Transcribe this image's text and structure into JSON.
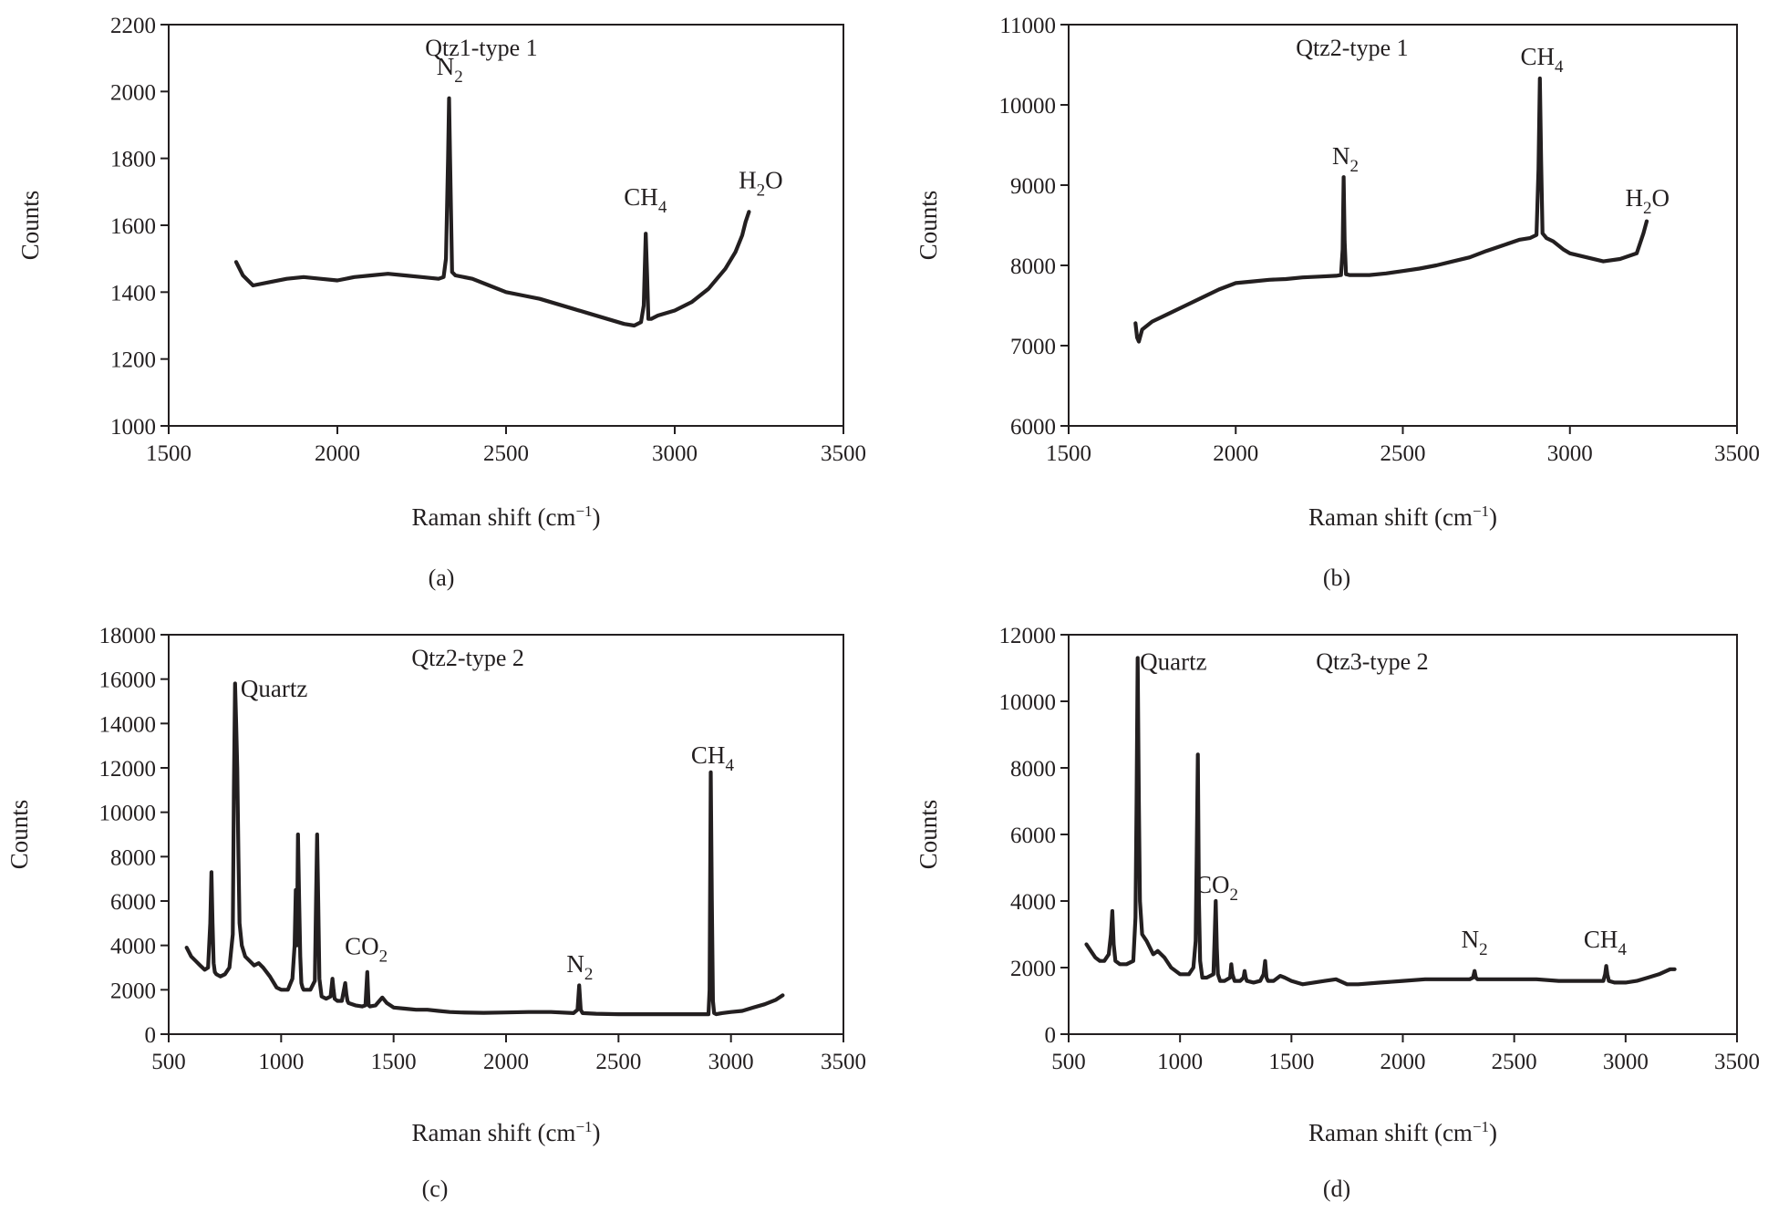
{
  "chart_data": [
    {
      "type": "line",
      "panel_label": "(a)",
      "title": "Qtz1-type 1",
      "xlabel_main": "Raman shift (cm",
      "xlabel_sup": "−1",
      "xlabel_close": ")",
      "ylabel": "Counts",
      "xlim": [
        1500,
        3500
      ],
      "ylim": [
        1000,
        2200
      ],
      "xticks": [
        "1500",
        "2000",
        "2500",
        "3000",
        "3500"
      ],
      "yticks": [
        "1000",
        "1200",
        "1400",
        "1600",
        "1800",
        "2000",
        "2200"
      ],
      "grid": false,
      "series": [
        {
          "x": [
            1700,
            1720,
            1750,
            1800,
            1850,
            1900,
            1950,
            2000,
            2050,
            2100,
            2150,
            2200,
            2250,
            2300,
            2315,
            2322,
            2328,
            2331,
            2334,
            2340,
            2350,
            2400,
            2450,
            2500,
            2550,
            2600,
            2650,
            2700,
            2750,
            2800,
            2850,
            2880,
            2900,
            2908,
            2914,
            2918,
            2922,
            2930,
            2950,
            3000,
            3050,
            3100,
            3150,
            3180,
            3200,
            3210,
            3220
          ],
          "y": [
            1490,
            1450,
            1420,
            1430,
            1440,
            1445,
            1440,
            1435,
            1445,
            1450,
            1455,
            1450,
            1445,
            1440,
            1445,
            1500,
            1800,
            1980,
            1800,
            1460,
            1450,
            1440,
            1420,
            1400,
            1390,
            1380,
            1365,
            1350,
            1335,
            1320,
            1305,
            1300,
            1310,
            1360,
            1575,
            1450,
            1320,
            1320,
            1330,
            1345,
            1370,
            1410,
            1470,
            1520,
            1570,
            1610,
            1640
          ]
        }
      ],
      "annotations": [
        {
          "main": "N",
          "sub": "2",
          "x": 2333,
          "y": 2050
        },
        {
          "main": "CH",
          "sub": "4",
          "x": 2913,
          "y": 1660
        },
        {
          "main": "H",
          "sub": "2",
          "after": "O",
          "x": 3255,
          "y": 1710
        }
      ]
    },
    {
      "type": "line",
      "panel_label": "(b)",
      "title": "Qtz2-type 1",
      "xlabel_main": "Raman shift (cm",
      "xlabel_sup": "−1",
      "xlabel_close": ")",
      "ylabel": "Counts",
      "xlim": [
        1500,
        3500
      ],
      "ylim": [
        6000,
        11000
      ],
      "xticks": [
        "1500",
        "2000",
        "2500",
        "3000",
        "3500"
      ],
      "yticks": [
        "6000",
        "7000",
        "8000",
        "9000",
        "10000",
        "11000"
      ],
      "grid": false,
      "series": [
        {
          "x": [
            1700,
            1705,
            1710,
            1720,
            1750,
            1800,
            1850,
            1900,
            1950,
            2000,
            2050,
            2100,
            2150,
            2200,
            2250,
            2300,
            2315,
            2320,
            2323,
            2326,
            2330,
            2340,
            2400,
            2450,
            2500,
            2550,
            2600,
            2650,
            2700,
            2750,
            2800,
            2850,
            2880,
            2900,
            2906,
            2910,
            2914,
            2918,
            2930,
            2950,
            2980,
            3000,
            3050,
            3100,
            3150,
            3200,
            3220,
            3230
          ],
          "y": [
            7280,
            7100,
            7050,
            7200,
            7300,
            7400,
            7500,
            7600,
            7700,
            7780,
            7800,
            7820,
            7830,
            7850,
            7860,
            7870,
            7880,
            8200,
            9100,
            8300,
            7890,
            7880,
            7880,
            7900,
            7930,
            7960,
            8000,
            8050,
            8100,
            8180,
            8250,
            8320,
            8340,
            8380,
            9200,
            10330,
            9300,
            8400,
            8340,
            8300,
            8200,
            8150,
            8100,
            8050,
            8080,
            8150,
            8400,
            8550
          ]
        }
      ],
      "annotations": [
        {
          "main": "N",
          "sub": "2",
          "x": 2328,
          "y": 9260
        },
        {
          "main": "CH",
          "sub": "4",
          "x": 2916,
          "y": 10500
        },
        {
          "main": "H",
          "sub": "2",
          "after": "O",
          "x": 3232,
          "y": 8740
        }
      ]
    },
    {
      "type": "line",
      "panel_label": "(c)",
      "title": "Qtz2-type 2",
      "xlabel_main": "Raman shift (cm",
      "xlabel_sup": "−1",
      "xlabel_close": ")",
      "ylabel": "Counts",
      "xlim": [
        500,
        3500
      ],
      "ylim": [
        0,
        18000
      ],
      "xticks": [
        "500",
        "1000",
        "1500",
        "2000",
        "2500",
        "3000",
        "3500"
      ],
      "yticks": [
        "0",
        "2000",
        "4000",
        "6000",
        "8000",
        "10000",
        "12000",
        "14000",
        "16000",
        "18000"
      ],
      "grid": false,
      "series": [
        {
          "x": [
            580,
            600,
            620,
            640,
            660,
            675,
            685,
            690,
            695,
            700,
            705,
            712,
            730,
            750,
            770,
            785,
            790,
            795,
            800,
            805,
            810,
            815,
            825,
            840,
            860,
            880,
            900,
            920,
            950,
            980,
            1000,
            1030,
            1050,
            1060,
            1065,
            1070,
            1075,
            1080,
            1085,
            1090,
            1095,
            1100,
            1110,
            1130,
            1150,
            1155,
            1160,
            1165,
            1170,
            1180,
            1200,
            1220,
            1228,
            1233,
            1238,
            1250,
            1270,
            1285,
            1290,
            1295,
            1300,
            1330,
            1360,
            1375,
            1383,
            1389,
            1395,
            1420,
            1450,
            1470,
            1500,
            1550,
            1600,
            1650,
            1700,
            1750,
            1800,
            1900,
            2000,
            2100,
            2200,
            2300,
            2318,
            2325,
            2332,
            2340,
            2400,
            2500,
            2600,
            2700,
            2800,
            2880,
            2900,
            2905,
            2910,
            2915,
            2920,
            2925,
            2935,
            2960,
            3000,
            3050,
            3100,
            3150,
            3200,
            3230
          ],
          "y": [
            3900,
            3500,
            3300,
            3100,
            2900,
            3000,
            5000,
            7300,
            5000,
            3200,
            2800,
            2700,
            2600,
            2700,
            3000,
            4500,
            11000,
            15800,
            14000,
            12000,
            8000,
            5000,
            4000,
            3500,
            3300,
            3100,
            3200,
            3000,
            2600,
            2100,
            2000,
            2000,
            2500,
            4000,
            6500,
            4000,
            9000,
            6000,
            3500,
            2300,
            2100,
            2000,
            2000,
            2000,
            2400,
            6000,
            9000,
            6000,
            2500,
            1700,
            1600,
            1700,
            2500,
            2000,
            1600,
            1500,
            1500,
            2300,
            1800,
            1500,
            1400,
            1300,
            1250,
            1300,
            2800,
            1300,
            1250,
            1300,
            1650,
            1400,
            1200,
            1150,
            1100,
            1100,
            1050,
            1000,
            980,
            960,
            980,
            1000,
            1000,
            950,
            1100,
            2200,
            1100,
            950,
            920,
            900,
            900,
            900,
            900,
            900,
            900,
            2000,
            11800,
            6000,
            1500,
            950,
            900,
            950,
            1000,
            1050,
            1200,
            1350,
            1550,
            1750
          ]
        }
      ],
      "annotations": [
        {
          "main": "Quartz",
          "x": 820,
          "y": 15200
        },
        {
          "main": "CO",
          "sub": "2",
          "x": 1378,
          "y": 3600
        },
        {
          "main": "N",
          "sub": "2",
          "x": 2328,
          "y": 2800
        },
        {
          "main": "CH",
          "sub": "4",
          "x": 2918,
          "y": 12200
        }
      ]
    },
    {
      "type": "line",
      "panel_label": "(d)",
      "title": "Qtz3-type 2",
      "xlabel_main": "Raman shift (cm",
      "xlabel_sup": "−1",
      "xlabel_close": ")",
      "ylabel": "Counts",
      "xlim": [
        500,
        3500
      ],
      "ylim": [
        0,
        12000
      ],
      "xticks": [
        "500",
        "1000",
        "1500",
        "2000",
        "2500",
        "3000",
        "3500"
      ],
      "yticks": [
        "0",
        "2000",
        "4000",
        "6000",
        "8000",
        "10000",
        "12000"
      ],
      "grid": false,
      "series": [
        {
          "x": [
            580,
            600,
            620,
            640,
            660,
            680,
            690,
            696,
            702,
            710,
            730,
            760,
            790,
            800,
            805,
            810,
            815,
            820,
            830,
            850,
            880,
            900,
            930,
            960,
            1000,
            1040,
            1060,
            1070,
            1075,
            1080,
            1085,
            1090,
            1100,
            1120,
            1150,
            1155,
            1160,
            1165,
            1170,
            1180,
            1200,
            1225,
            1230,
            1235,
            1245,
            1270,
            1285,
            1290,
            1295,
            1300,
            1330,
            1360,
            1375,
            1382,
            1388,
            1395,
            1420,
            1450,
            1470,
            1500,
            1550,
            1600,
            1650,
            1700,
            1750,
            1800,
            1900,
            2000,
            2100,
            2200,
            2300,
            2315,
            2322,
            2328,
            2335,
            2400,
            2500,
            2600,
            2700,
            2800,
            2900,
            2908,
            2913,
            2918,
            2925,
            2950,
            3000,
            3050,
            3100,
            3150,
            3200,
            3220
          ],
          "y": [
            2700,
            2500,
            2300,
            2200,
            2200,
            2400,
            3000,
            3700,
            2700,
            2200,
            2100,
            2100,
            2200,
            3500,
            7000,
            11300,
            7000,
            4000,
            3000,
            2800,
            2400,
            2500,
            2300,
            2000,
            1800,
            1800,
            2000,
            2800,
            5500,
            8400,
            4000,
            2200,
            1700,
            1700,
            1800,
            2800,
            4000,
            2600,
            1800,
            1600,
            1600,
            1700,
            2100,
            1800,
            1600,
            1600,
            1700,
            1900,
            1700,
            1600,
            1550,
            1600,
            1800,
            2200,
            1700,
            1600,
            1600,
            1750,
            1700,
            1600,
            1500,
            1550,
            1600,
            1650,
            1500,
            1500,
            1550,
            1600,
            1650,
            1650,
            1650,
            1700,
            1900,
            1700,
            1650,
            1650,
            1650,
            1650,
            1600,
            1600,
            1600,
            1800,
            2050,
            1800,
            1600,
            1550,
            1550,
            1600,
            1700,
            1800,
            1950,
            1950
          ]
        }
      ],
      "annotations": [
        {
          "main": "Quartz",
          "x": 820,
          "y": 10950
        },
        {
          "main": "CO",
          "sub": "2",
          "x": 1165,
          "y": 4250
        },
        {
          "main": "N",
          "sub": "2",
          "x": 2322,
          "y": 2600
        },
        {
          "main": "CH",
          "sub": "4",
          "x": 2908,
          "y": 2600
        }
      ]
    }
  ]
}
